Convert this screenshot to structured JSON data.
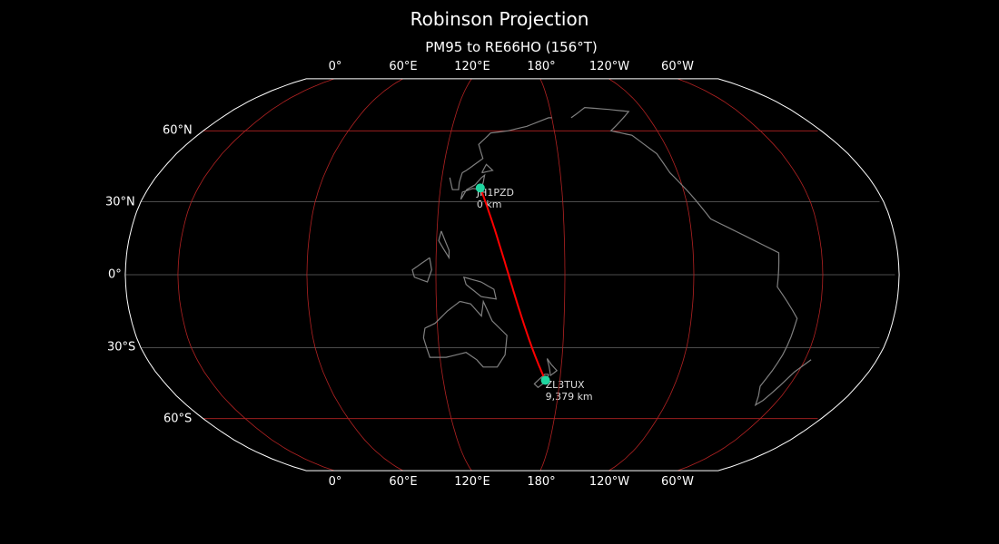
{
  "title": "Robinson Projection",
  "subtitle": "PM95 to RE66HO (156°T)",
  "lon_labels": [
    "0°",
    "60°E",
    "120°E",
    "180°",
    "120°W",
    "60°W"
  ],
  "lat_labels": [
    "60°N",
    "30°N",
    "0°",
    "30°S",
    "60°S"
  ],
  "colors": {
    "background": "#000000",
    "coastline": "#808080",
    "graticule_major": "#b22222",
    "graticule_minor": "#666666",
    "path": "#ff0000",
    "marker": "#1fd6a0",
    "outline": "#ffffff"
  },
  "stations": [
    {
      "call": "JH1PZD",
      "distance": "0 km",
      "lat": 35.7,
      "lon": 139.7
    },
    {
      "call": "ZL3TUX",
      "distance": "9,379 km",
      "lat": -43.5,
      "lon": 172.6
    }
  ]
}
